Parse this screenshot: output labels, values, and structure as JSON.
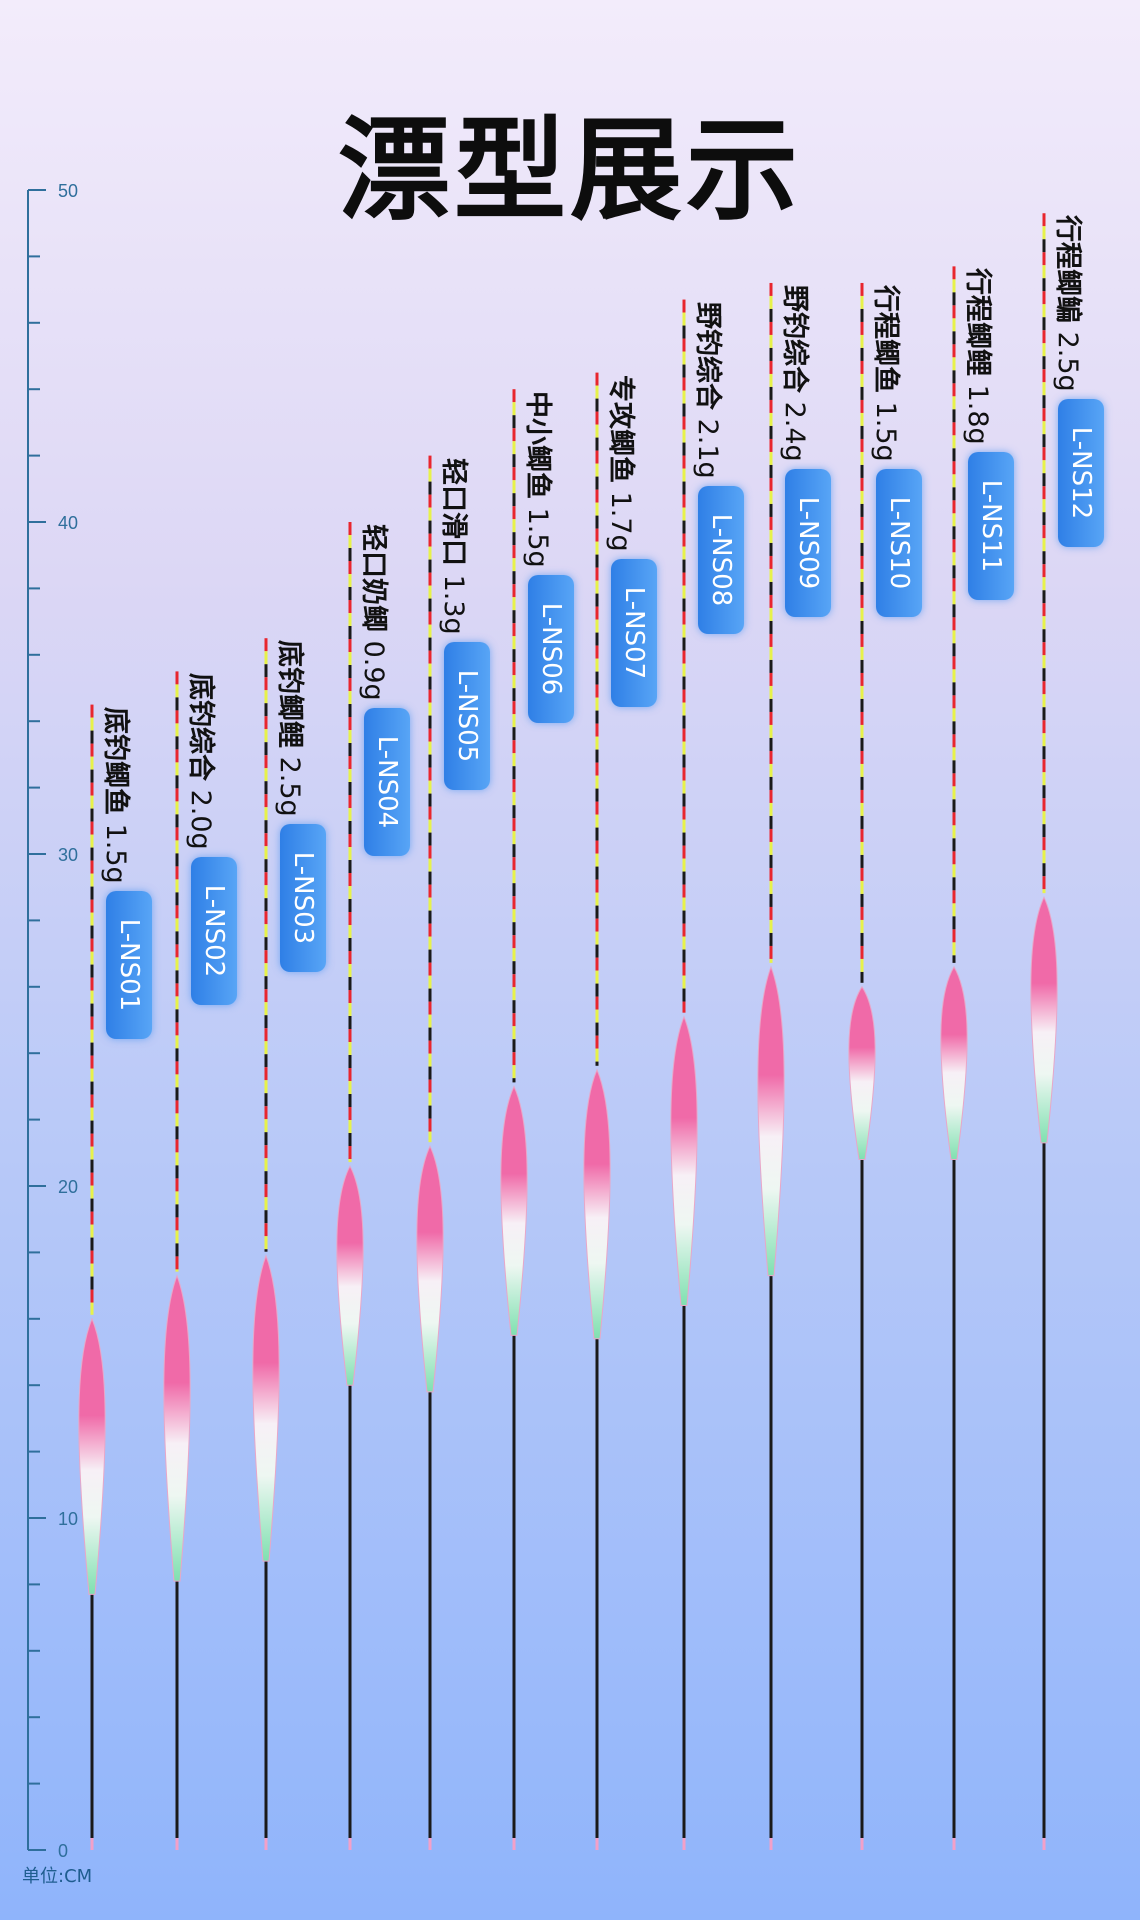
{
  "title": "漂型展示",
  "ruler": {
    "unit_label": "单位:CM",
    "min": 0,
    "max": 50,
    "tick_labels": [
      "0",
      "10",
      "20",
      "30",
      "40",
      "50"
    ],
    "color": "#2f6f9c"
  },
  "colors": {
    "tag_blue": "#3a8bea",
    "body_pink": "#f06aa8",
    "body_green": "#7fe0b0",
    "antenna_red": "#e8262e",
    "antenna_yellow": "#e7f24a",
    "stem_dark": "#1a1a1a"
  },
  "floats": [
    {
      "name": "底钓鲫鱼",
      "weight": "1.5g",
      "code": "L-NS01",
      "tip_cm": 34.5,
      "body_top_cm": 16.0,
      "body_bottom_cm": 7.7
    },
    {
      "name": "底钓综合",
      "weight": "2.0g",
      "code": "L-NS02",
      "tip_cm": 35.5,
      "body_top_cm": 17.3,
      "body_bottom_cm": 8.1
    },
    {
      "name": "底钓鲫鲤",
      "weight": "2.5g",
      "code": "L-NS03",
      "tip_cm": 36.5,
      "body_top_cm": 17.9,
      "body_bottom_cm": 8.7
    },
    {
      "name": "轻口奶鲫",
      "weight": "0.9g",
      "code": "L-NS04",
      "tip_cm": 40.0,
      "body_top_cm": 20.6,
      "body_bottom_cm": 14.0
    },
    {
      "name": "轻口滑口",
      "weight": "1.3g",
      "code": "L-NS05",
      "tip_cm": 42.0,
      "body_top_cm": 21.2,
      "body_bottom_cm": 13.8
    },
    {
      "name": "中小鲫鱼",
      "weight": "1.5g",
      "code": "L-NS06",
      "tip_cm": 44.0,
      "body_top_cm": 23.0,
      "body_bottom_cm": 15.5
    },
    {
      "name": "专攻鲫鱼",
      "weight": "1.7g",
      "code": "L-NS07",
      "tip_cm": 44.5,
      "body_top_cm": 23.5,
      "body_bottom_cm": 15.4
    },
    {
      "name": "野钓综合",
      "weight": "2.1g",
      "code": "L-NS08",
      "tip_cm": 46.7,
      "body_top_cm": 25.1,
      "body_bottom_cm": 16.4
    },
    {
      "name": "野钓综合",
      "weight": "2.4g",
      "code": "L-NS09",
      "tip_cm": 47.2,
      "body_top_cm": 26.6,
      "body_bottom_cm": 17.3
    },
    {
      "name": "行程鲫鱼",
      "weight": "1.5g",
      "code": "L-NS10",
      "tip_cm": 47.2,
      "body_top_cm": 26.0,
      "body_bottom_cm": 20.8
    },
    {
      "name": "行程鲫鲤",
      "weight": "1.8g",
      "code": "L-NS11",
      "tip_cm": 47.7,
      "body_top_cm": 26.6,
      "body_bottom_cm": 20.8
    },
    {
      "name": "行程鲫鳊",
      "weight": "2.5g",
      "code": "L-NS12",
      "tip_cm": 49.3,
      "body_top_cm": 28.7,
      "body_bottom_cm": 21.3
    }
  ]
}
